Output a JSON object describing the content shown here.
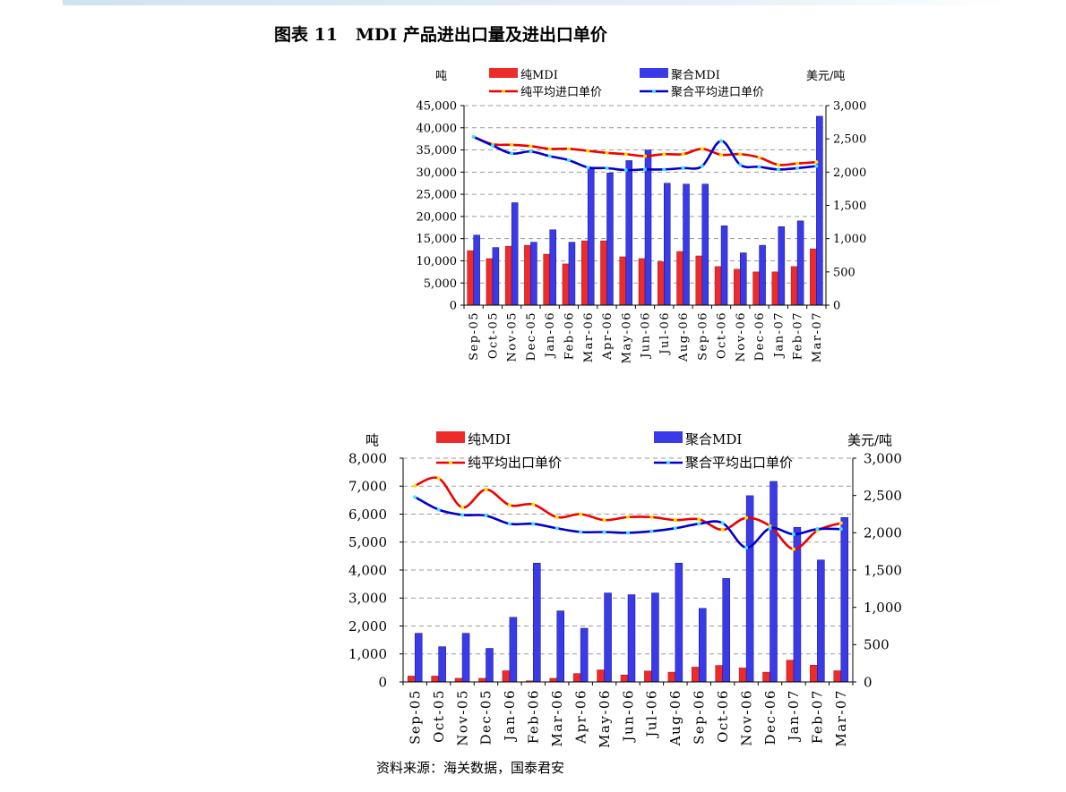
{
  "figure": {
    "title": "图表 11   MDI 产品进出口量及进出口单价",
    "source": "资料来源：海关数据，国泰君安"
  },
  "chart_data": [
    {
      "type": "bar",
      "categories": [
        "Sep-05",
        "Oct-05",
        "Nov-05",
        "Dec-05",
        "Jan-06",
        "Feb-06",
        "Mar-06",
        "Apr-06",
        "May-06",
        "Jun-06",
        "Jul-06",
        "Aug-06",
        "Sep-06",
        "Oct-06",
        "Nov-06",
        "Dec-06",
        "Jan-07",
        "Feb-07",
        "Mar-07"
      ],
      "left_axis_label": "吨",
      "right_axis_label": "美元/吨",
      "ylim": [
        0,
        45000
      ],
      "y2lim": [
        0,
        3000
      ],
      "yticks": [
        "0",
        "5,000",
        "10,000",
        "15,000",
        "20,000",
        "25,000",
        "30,000",
        "35,000",
        "40,000",
        "45,000"
      ],
      "y2ticks": [
        "0",
        "500",
        "1,000",
        "1,500",
        "2,000",
        "2,500",
        "3,000"
      ],
      "grid": "horizontal dashed",
      "legend_position": "top",
      "series": [
        {
          "name": "纯MDI",
          "kind": "bar",
          "axis": "left",
          "color": "#ee2b2b",
          "values": [
            12300,
            10500,
            13300,
            13500,
            11500,
            9300,
            14500,
            14500,
            10900,
            10500,
            9800,
            12100,
            11100,
            8700,
            8100,
            7500,
            7500,
            8700,
            12700
          ]
        },
        {
          "name": "聚合MDI",
          "kind": "bar",
          "axis": "left",
          "color": "#3a3ae8",
          "values": [
            15800,
            13000,
            23100,
            14200,
            17000,
            14200,
            30800,
            29800,
            32600,
            35000,
            27500,
            27300,
            27300,
            17900,
            11800,
            13500,
            17700,
            19000,
            42600
          ]
        },
        {
          "name": "纯平均进口单价",
          "kind": "line",
          "axis": "right",
          "color": "#ee0000",
          "marker": "#ffe000",
          "values": [
            2530,
            2420,
            2410,
            2390,
            2350,
            2350,
            2320,
            2290,
            2270,
            2240,
            2270,
            2270,
            2350,
            2260,
            2270,
            2220,
            2110,
            2130,
            2150
          ]
        },
        {
          "name": "聚合平均进口单价",
          "kind": "line",
          "axis": "right",
          "color": "#0000cc",
          "marker": "#40e0ff",
          "values": [
            2530,
            2400,
            2280,
            2310,
            2240,
            2180,
            2070,
            2060,
            2030,
            2040,
            2040,
            2060,
            2090,
            2470,
            2110,
            2080,
            2040,
            2060,
            2090
          ]
        }
      ]
    },
    {
      "type": "bar",
      "categories": [
        "Sep-05",
        "Oct-05",
        "Nov-05",
        "Dec-05",
        "Jan-06",
        "Feb-06",
        "Mar-06",
        "Apr-06",
        "May-06",
        "Jun-06",
        "Jul-06",
        "Aug-06",
        "Sep-06",
        "Oct-06",
        "Nov-06",
        "Dec-06",
        "Jan-07",
        "Feb-07",
        "Mar-07"
      ],
      "left_axis_label": "吨",
      "right_axis_label": "美元/吨",
      "ylim": [
        0,
        8000
      ],
      "y2lim": [
        0,
        3000
      ],
      "yticks": [
        "0",
        "1,000",
        "2,000",
        "3,000",
        "4,000",
        "5,000",
        "6,000",
        "7,000",
        "8,000"
      ],
      "y2ticks": [
        "0",
        "500",
        "1,000",
        "1,500",
        "2,000",
        "2,500",
        "3,000"
      ],
      "grid": "horizontal dashed",
      "legend_position": "top",
      "series": [
        {
          "name": "纯MDI",
          "kind": "bar",
          "axis": "left",
          "color": "#ee2b2b",
          "values": [
            210,
            210,
            130,
            130,
            400,
            40,
            130,
            300,
            430,
            250,
            390,
            350,
            530,
            590,
            500,
            350,
            780,
            600,
            400
          ]
        },
        {
          "name": "聚合MDI",
          "kind": "bar",
          "axis": "left",
          "color": "#3a3ae8",
          "values": [
            1740,
            1260,
            1740,
            1200,
            2310,
            4250,
            2540,
            1920,
            3180,
            3120,
            3180,
            4250,
            2630,
            3700,
            6660,
            7170,
            5530,
            4360,
            5880
          ]
        },
        {
          "name": "纯平均出口单价",
          "kind": "line",
          "axis": "right",
          "color": "#ee0000",
          "marker": "#ffe000",
          "values": [
            2630,
            2730,
            2340,
            2580,
            2370,
            2380,
            2210,
            2250,
            2170,
            2210,
            2210,
            2170,
            2180,
            2040,
            2200,
            2090,
            1780,
            2030,
            2130
          ]
        },
        {
          "name": "聚合平均出口单价",
          "kind": "line",
          "axis": "right",
          "color": "#0000cc",
          "marker": "#40e0ff",
          "values": [
            2480,
            2310,
            2240,
            2230,
            2120,
            2120,
            2060,
            2010,
            2010,
            2000,
            2020,
            2060,
            2120,
            2130,
            1800,
            2060,
            1980,
            2050,
            2050
          ]
        }
      ]
    }
  ]
}
